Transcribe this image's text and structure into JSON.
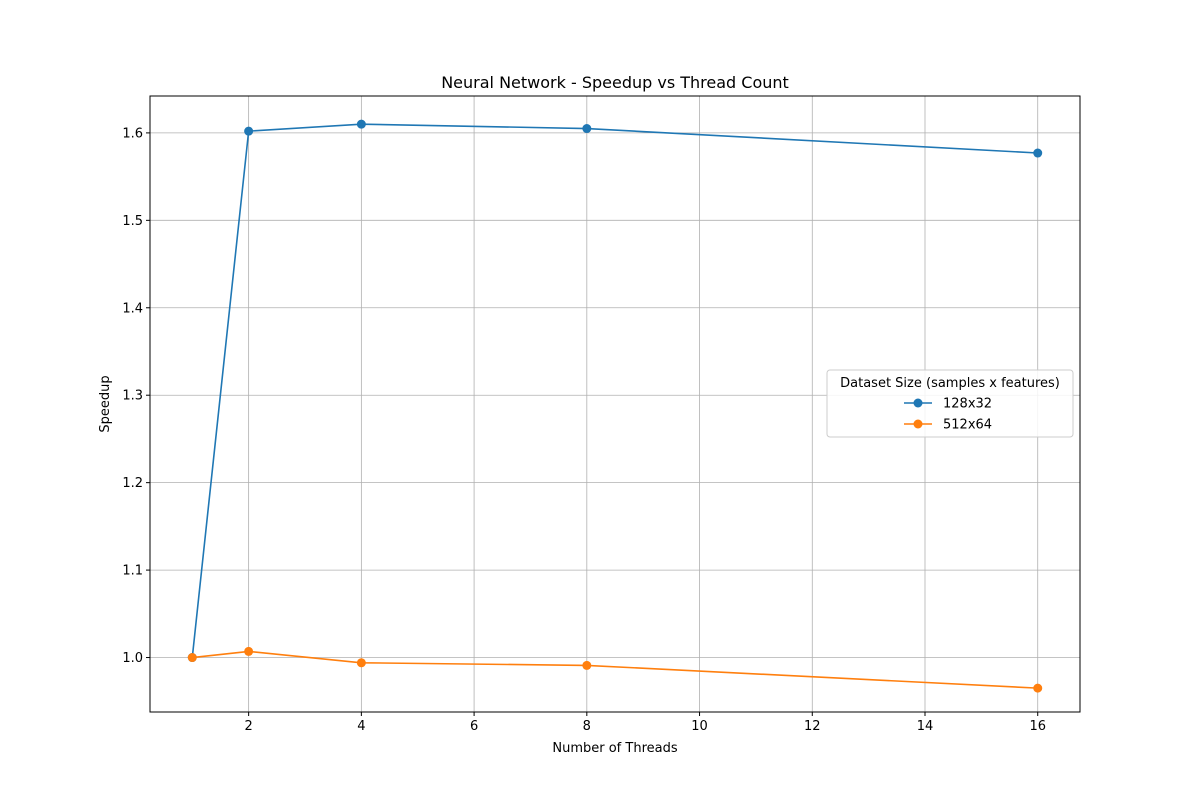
{
  "chart_data": {
    "type": "line",
    "title": "Neural Network - Speedup vs Thread Count",
    "xlabel": "Number of Threads",
    "ylabel": "Speedup",
    "xlim": [
      0.25,
      16.75
    ],
    "ylim": [
      0.9377,
      1.6422
    ],
    "xticks": [
      2,
      4,
      6,
      8,
      10,
      12,
      14,
      16
    ],
    "yticks": [
      1.0,
      1.1,
      1.2,
      1.3,
      1.4,
      1.5,
      1.6
    ],
    "grid": true,
    "legend": {
      "title": "Dataset Size (samples x features)",
      "placement": "center-right"
    },
    "x": [
      1,
      2,
      4,
      8,
      16
    ],
    "series": [
      {
        "name": "128x32",
        "color": "#1f77b4",
        "marker": "circle",
        "values": [
          1.0,
          1.602,
          1.61,
          1.605,
          1.577
        ]
      },
      {
        "name": "512x64",
        "color": "#ff7f0e",
        "marker": "circle",
        "values": [
          1.0,
          1.007,
          0.994,
          0.991,
          0.965
        ]
      }
    ]
  }
}
